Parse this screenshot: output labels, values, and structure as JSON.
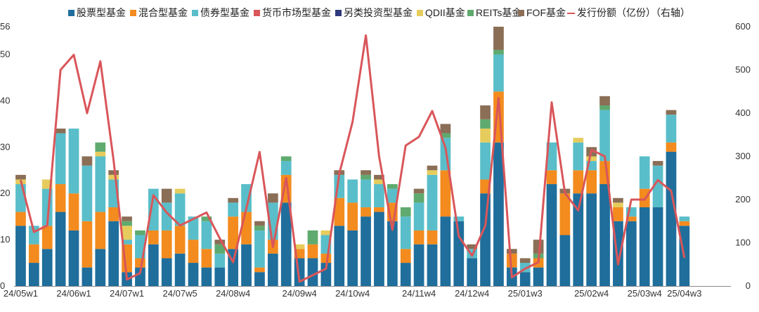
{
  "chart_data": {
    "type": "bar",
    "stacked": true,
    "categories": [
      "24/05w1",
      "24/05w2",
      "24/05w3",
      "24/05w4",
      "24/06w1",
      "24/06w2",
      "24/06w3",
      "24/06w4",
      "24/07w1",
      "24/07w2",
      "24/07w3",
      "24/07w4",
      "24/07w5",
      "24/08w1",
      "24/08w2",
      "24/08w3",
      "24/08w4",
      "24/08w5",
      "24/09w1",
      "24/09w2",
      "24/09w3",
      "24/09w4",
      "24/10w1",
      "24/10w2",
      "24/10w3",
      "24/10w4",
      "24/10w5",
      "24/11w1",
      "24/11w2",
      "24/11w3",
      "24/11w4",
      "24/12w1",
      "24/12w2",
      "24/12w3",
      "24/12w4",
      "24/12w5",
      "25/01w1",
      "25/01w2",
      "25/01w3",
      "25/01w4",
      "25/02w1",
      "25/02w2",
      "25/02w3",
      "25/02w4",
      "25/03w1",
      "25/03w2",
      "25/03w3",
      "25/03w4",
      "25/04w1",
      "25/04w2",
      "25/04w3",
      "25/04w4",
      "25/05w1",
      "25/05w2"
    ],
    "x_tick_labels": [
      "24/05w1",
      "24/06w1",
      "24/07w1",
      "24/07w5",
      "24/08w4",
      "24/09w4",
      "24/10w4",
      "24/11w4",
      "24/12w4",
      "25/01w3",
      "25/02w4",
      "25/03w4",
      "25/04w3"
    ],
    "y_left": {
      "ticks": [
        0,
        10,
        20,
        30,
        40,
        50,
        56
      ],
      "range": [
        0,
        56
      ]
    },
    "y_right": {
      "ticks": [
        0,
        100,
        200,
        300,
        400,
        500,
        600
      ],
      "range": [
        0,
        600
      ]
    },
    "legend_position": "top",
    "series": [
      {
        "name": "股票型基金",
        "color": "#1f6e9c",
        "values": [
          13,
          5,
          8,
          16,
          12,
          4,
          8,
          14,
          3,
          4,
          9,
          6,
          7,
          5,
          4,
          4,
          8,
          9,
          3,
          7,
          18,
          6,
          6,
          5,
          13,
          12,
          15,
          16,
          14,
          5,
          9,
          9,
          15,
          14,
          6,
          20,
          31,
          4,
          3,
          4,
          22,
          11,
          20,
          20,
          22,
          14,
          14,
          17,
          17,
          29,
          13,
          0,
          0,
          0
        ]
      },
      {
        "name": "混合型基金",
        "color": "#f38b1e",
        "values": [
          3,
          4,
          5,
          6,
          8,
          10,
          8,
          3,
          6,
          2,
          3,
          6,
          6,
          5,
          4,
          0,
          7,
          7,
          1,
          3,
          6,
          2,
          3,
          2,
          6,
          6,
          2,
          1,
          4,
          3,
          3,
          3,
          10,
          0,
          0,
          3,
          11,
          3,
          0,
          2,
          3,
          9,
          5,
          5,
          5,
          3,
          1,
          4,
          0,
          2,
          1,
          0,
          0,
          0
        ]
      },
      {
        "name": "债券型基金",
        "color": "#59bec9",
        "values": [
          6,
          4,
          8,
          11,
          14,
          12,
          12,
          6,
          1,
          5,
          9,
          6,
          7,
          5,
          6,
          3,
          3,
          6,
          8,
          8,
          3,
          0,
          0,
          4,
          5,
          5,
          6,
          5,
          3,
          7,
          6,
          12,
          7,
          1,
          2,
          8,
          8,
          0,
          2,
          0,
          6,
          0,
          6,
          2,
          11,
          0,
          2,
          7,
          9,
          6,
          1,
          0,
          0,
          0
        ]
      },
      {
        "name": "货币市场型基金",
        "color": "#d9565a",
        "values": [
          0,
          0,
          0,
          0,
          0,
          0,
          0,
          0,
          0,
          0,
          0,
          0,
          0,
          0,
          0,
          0,
          0,
          0,
          0,
          0,
          0,
          0,
          0,
          0,
          0,
          0,
          0,
          0,
          0,
          0,
          0,
          0,
          0,
          0,
          0,
          0,
          0,
          0,
          0,
          0,
          0,
          0,
          0,
          0,
          0,
          0,
          0,
          0,
          0,
          0,
          0,
          0,
          0,
          0
        ]
      },
      {
        "name": "另类投资型基金",
        "color": "#2e3a7d",
        "values": [
          0,
          0,
          0,
          0,
          0,
          0,
          0,
          0,
          0,
          0,
          0,
          0,
          0,
          0,
          0,
          0,
          0,
          0,
          0,
          0,
          0,
          0,
          0,
          0,
          0,
          0,
          0,
          0,
          0,
          0,
          0,
          0,
          0,
          0,
          0,
          0,
          0,
          0,
          0,
          0,
          0,
          0,
          0,
          0,
          0,
          0,
          0,
          0,
          0,
          0,
          0,
          0,
          0,
          0
        ]
      },
      {
        "name": "QDII基金",
        "color": "#e6cc5c",
        "values": [
          1,
          0,
          2,
          0,
          0,
          0,
          1,
          1,
          3,
          0,
          0,
          0,
          1,
          0,
          0,
          0,
          0,
          0,
          0,
          0,
          0,
          1,
          0,
          1,
          0,
          0,
          0,
          1,
          0,
          0,
          0,
          1,
          0,
          0,
          0,
          3,
          0,
          0,
          0,
          0,
          0,
          0,
          1,
          1,
          0,
          1,
          0,
          0,
          0,
          0,
          0,
          0,
          0,
          0
        ]
      },
      {
        "name": "REITs基金",
        "color": "#5faa6f",
        "values": [
          0,
          0,
          0,
          0,
          0,
          0,
          2,
          0,
          1,
          1,
          0,
          0,
          0,
          0,
          1,
          2,
          0,
          0,
          1,
          0,
          1,
          0,
          3,
          0,
          0,
          0,
          1,
          0,
          1,
          2,
          2,
          0,
          1,
          0,
          0,
          2,
          1,
          0,
          0,
          1,
          0,
          0,
          0,
          0,
          1,
          0,
          0,
          0,
          0,
          0,
          0,
          0,
          0,
          0
        ]
      },
      {
        "name": "FOF基金",
        "color": "#8a6e56",
        "values": [
          1,
          0,
          0,
          1,
          0,
          2,
          0,
          1,
          1,
          0,
          0,
          3,
          0,
          0,
          0,
          1,
          1,
          0,
          1,
          2,
          0,
          0,
          0,
          0,
          1,
          0,
          1,
          1,
          0,
          0,
          1,
          1,
          2,
          0,
          1,
          3,
          5,
          1,
          1,
          3,
          0,
          1,
          0,
          2,
          2,
          1,
          0,
          0,
          1,
          1,
          0,
          0,
          0,
          0
        ]
      }
    ],
    "line_series": {
      "name": "发行份额（亿份）（右轴）",
      "axis": "right",
      "color": "#d9565a",
      "values": [
        245,
        125,
        140,
        500,
        535,
        400,
        520,
        290,
        15,
        30,
        210,
        170,
        140,
        155,
        170,
        110,
        55,
        180,
        310,
        90,
        250,
        10,
        25,
        40,
        260,
        380,
        580,
        300,
        130,
        325,
        345,
        405,
        320,
        115,
        70,
        140,
        435,
        20,
        40,
        55,
        425,
        215,
        175,
        315,
        300,
        50,
        200,
        200,
        245,
        220,
        65,
        0,
        0,
        0
      ]
    }
  }
}
